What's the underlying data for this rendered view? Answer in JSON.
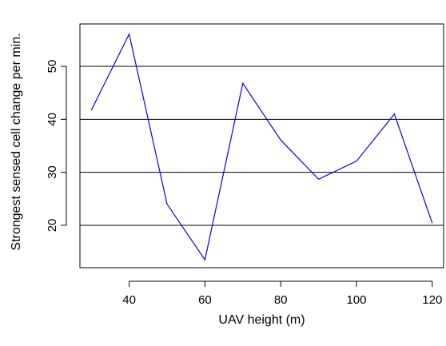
{
  "chart_data": {
    "type": "line",
    "title": "",
    "xlabel": "UAV height (m)",
    "ylabel": "Strongest sensed cell change per min.",
    "x": [
      30,
      40,
      50,
      60,
      70,
      80,
      90,
      100,
      110,
      120
    ],
    "series": [
      {
        "values": [
          41.7,
          56.1,
          24.0,
          13.5,
          46.8,
          36.1,
          28.7,
          32.1,
          41.0,
          20.4
        ],
        "color": "#0000ff"
      }
    ],
    "xlim": [
      27,
      123
    ],
    "ylim": [
      12,
      58
    ],
    "xticks": [
      "40",
      "60",
      "80",
      "100",
      "120"
    ],
    "yticks": [
      "20",
      "30",
      "40",
      "50"
    ],
    "grid": "horizontal lines at y ticks",
    "legend": "none"
  }
}
